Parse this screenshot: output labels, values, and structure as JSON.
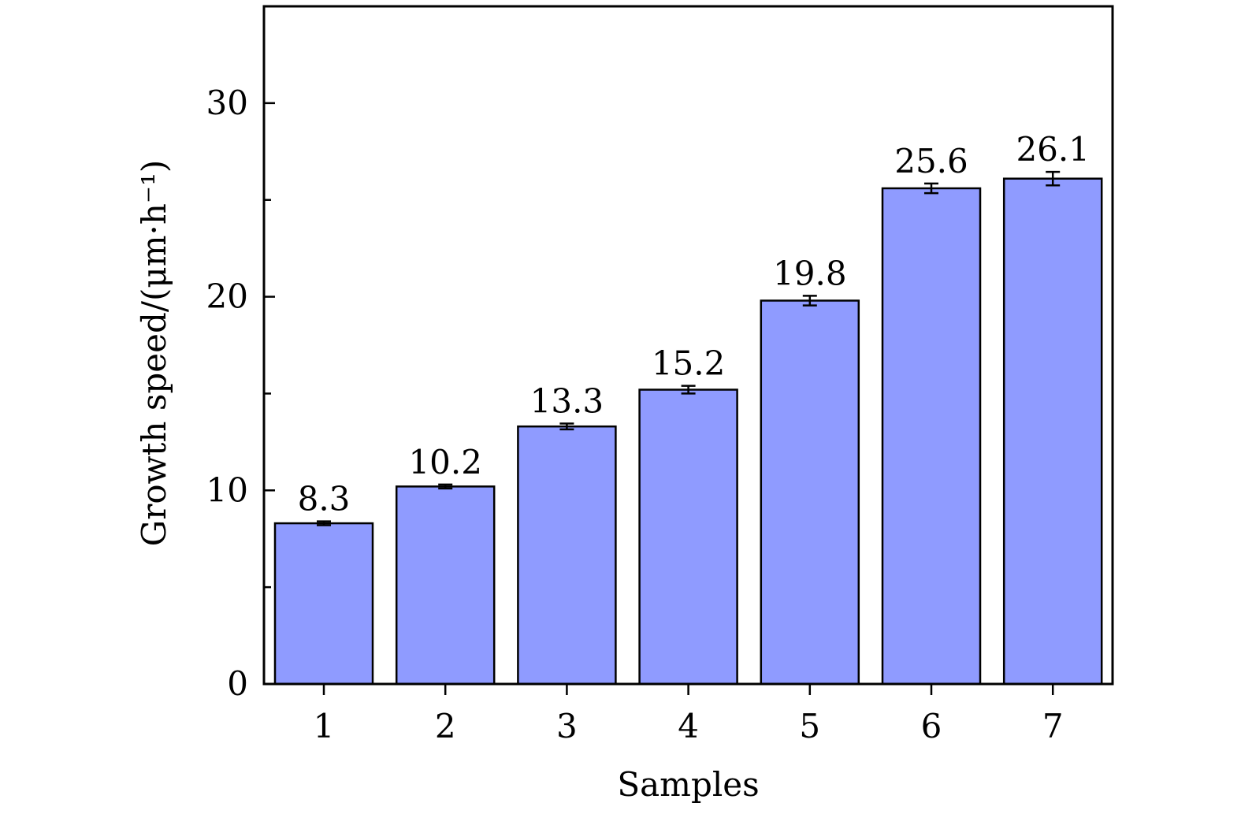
{
  "chart_data": {
    "type": "bar",
    "title": "",
    "xlabel": "Samples",
    "ylabel": "Growth speed/(μm·h⁻¹)",
    "categories": [
      "1",
      "2",
      "3",
      "4",
      "5",
      "6",
      "7"
    ],
    "values": [
      8.3,
      10.2,
      13.3,
      15.2,
      19.8,
      25.6,
      26.1
    ],
    "errors": [
      0.1,
      0.1,
      0.15,
      0.2,
      0.25,
      0.25,
      0.35
    ],
    "data_labels": [
      "8.3",
      "10.2",
      "13.3",
      "15.2",
      "19.8",
      "25.6",
      "26.1"
    ],
    "ylim": [
      0,
      35
    ],
    "yticks": [
      0,
      10,
      20,
      30
    ],
    "yticks_minor": [
      5,
      15,
      25
    ],
    "grid": false,
    "legend": "none",
    "bar_color": "#8f9bff",
    "bar_edge_color": "#000000"
  }
}
